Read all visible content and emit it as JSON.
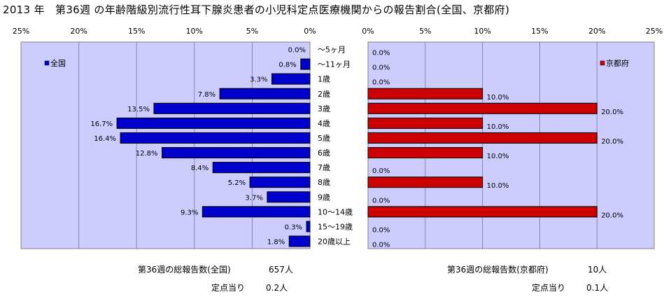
{
  "title": "2013 年　第36週 の年齢階級別流行性耳下腺炎患者の小児科定点医療機関からの報告割合(全国、京都府)",
  "colors": {
    "plot_bg": "#ccccff",
    "national_bar": "#0000cc",
    "kyoto_bar": "#cc0000",
    "grid": "#8888aa"
  },
  "chart_data": [
    {
      "type": "bar",
      "orientation": "horizontal",
      "direction": "right-to-left",
      "xlim": [
        0,
        25
      ],
      "ticks": [
        "25%",
        "20%",
        "15%",
        "10%",
        "5%",
        "0%"
      ],
      "tick_values": [
        25,
        20,
        15,
        10,
        5,
        0
      ],
      "grid": true,
      "legend": "top-left",
      "categories": [
        "～5ヶ月",
        "～11ヶ月",
        "1歳",
        "2歳",
        "3歳",
        "4歳",
        "5歳",
        "6歳",
        "7歳",
        "8歳",
        "9歳",
        "10～14歳",
        "15～19歳",
        "20歳以上"
      ],
      "series": [
        {
          "name": "全国",
          "values": [
            0.0,
            0.8,
            3.3,
            7.8,
            13.5,
            16.7,
            16.4,
            12.8,
            8.4,
            5.2,
            3.7,
            9.3,
            0.3,
            1.8
          ],
          "labels": [
            "0.0%",
            "0.8%",
            "3.3%",
            "7.8%",
            "13.5%",
            "16.7%",
            "16.4%",
            "12.8%",
            "8.4%",
            "5.2%",
            "3.7%",
            "9.3%",
            "0.3%",
            "1.8%"
          ]
        }
      ]
    },
    {
      "type": "bar",
      "orientation": "horizontal",
      "direction": "left-to-right",
      "xlim": [
        0,
        25
      ],
      "ticks": [
        "0%",
        "5%",
        "10%",
        "15%",
        "20%",
        "25%"
      ],
      "tick_values": [
        0,
        5,
        10,
        15,
        20,
        25
      ],
      "grid": true,
      "legend": "top-right",
      "series": [
        {
          "name": "京都府",
          "values": [
            0.0,
            0.0,
            0.0,
            10.0,
            20.0,
            10.0,
            20.0,
            10.0,
            0.0,
            10.0,
            0.0,
            20.0,
            0.0,
            0.0
          ],
          "labels": [
            "0.0%",
            "0.0%",
            "0.0%",
            "10.0%",
            "20.0%",
            "10.0%",
            "20.0%",
            "10.0%",
            "0.0%",
            "10.0%",
            "0.0%",
            "20.0%",
            "0.0%",
            "0.0%"
          ]
        }
      ]
    }
  ],
  "summary": {
    "national": {
      "total_label": "第36週の総報告数(全国)",
      "total_value": "657人",
      "per_label": "定点当り",
      "per_value": "0.2人"
    },
    "kyoto": {
      "total_label": "第36週の総報告数(京都府)",
      "total_value": "10人",
      "per_label": "定点当り",
      "per_value": "0.1人"
    }
  }
}
